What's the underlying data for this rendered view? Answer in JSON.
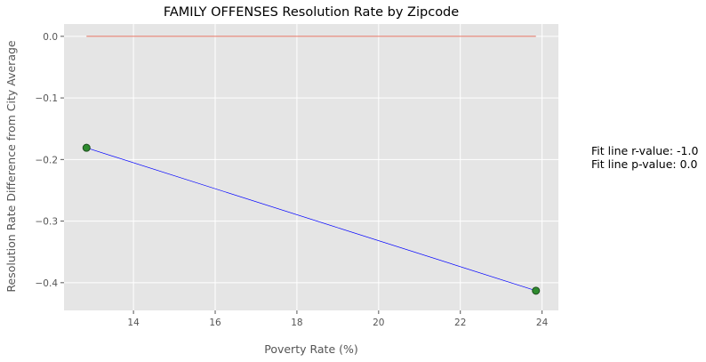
{
  "chart_data": {
    "type": "scatter",
    "title": "FAMILY OFFENSES Resolution Rate by Zipcode",
    "xlabel": "Poverty Rate (%)",
    "ylabel": "Resolution Rate Difference from City Average",
    "xlim": [
      12.3,
      24.4
    ],
    "ylim": [
      -0.445,
      0.02
    ],
    "x_ticks": [
      14,
      16,
      18,
      20,
      22,
      24
    ],
    "y_ticks": [
      0.0,
      -0.1,
      -0.2,
      -0.3,
      -0.4
    ],
    "x_tick_labels": [
      "14",
      "16",
      "18",
      "20",
      "22",
      "24"
    ],
    "y_tick_labels": [
      "0.0",
      "−0.1",
      "−0.2",
      "−0.3",
      "−0.4"
    ],
    "grid": true,
    "points": [
      {
        "x": 12.85,
        "y": -0.181
      },
      {
        "x": 23.85,
        "y": -0.413
      }
    ],
    "fit_line": {
      "x": [
        12.85,
        23.85
      ],
      "y": [
        -0.181,
        -0.413
      ],
      "color": "#0000ff"
    },
    "reference_line": {
      "x": [
        12.85,
        23.85
      ],
      "y": 0.0,
      "color": "#e24a33"
    },
    "marker_color": "#2e8b2e",
    "background_color": "#e5e5e5",
    "annotations": [
      "Fit line r-value: -1.0",
      "Fit line p-value: 0.0"
    ]
  }
}
